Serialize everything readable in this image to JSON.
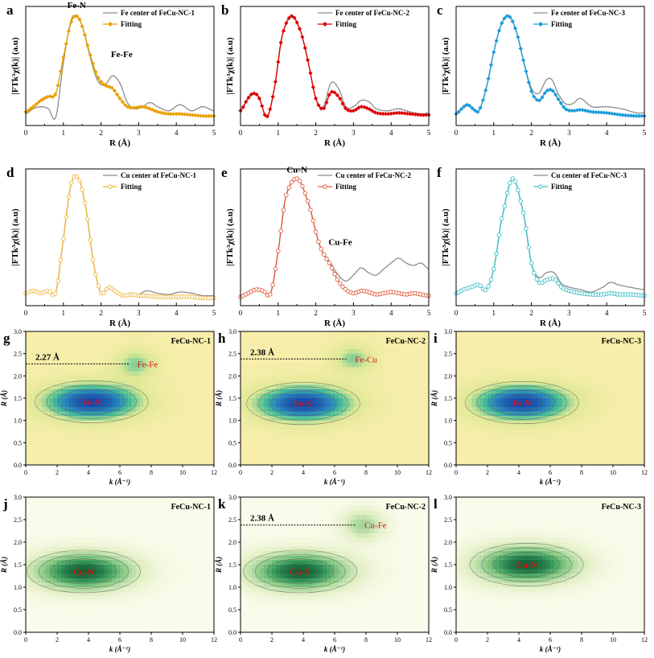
{
  "figure": {
    "rows": [
      {
        "ylabel_html": "|FTk³χ(k)| (a.u)",
        "xlabel": "R (Å)"
      },
      {
        "ylabel_html": "|FTk³χ(k)| (a.u)",
        "xlabel": "R (Å)"
      }
    ]
  },
  "chart_data": [
    {
      "panel": "a",
      "type": "line",
      "title": "",
      "legend": [
        "Fe center of FeCu-NC-1",
        "Fitting"
      ],
      "colors": {
        "data": "#8c8c8c",
        "fit": "#e8a000"
      },
      "fit_marker": "diamond",
      "xlim": [
        0,
        5
      ],
      "xticks": [
        0,
        1,
        2,
        3,
        4,
        5
      ],
      "xlabel": "R (Å)",
      "ylabel": "|FTk³χ(k)| (a.u)",
      "annotations": [
        {
          "text": "Fe-N",
          "x": 1.35,
          "y": 1.08
        },
        {
          "text": "Fe-Fe",
          "x": 2.55,
          "y": 0.6
        }
      ],
      "series": [
        {
          "name": "Fe center of FeCu-NC-1",
          "x": [
            0,
            0.2,
            0.4,
            0.6,
            0.8,
            1.0,
            1.2,
            1.35,
            1.5,
            1.7,
            1.9,
            2.1,
            2.3,
            2.5,
            2.7,
            2.9,
            3.1,
            3.3,
            3.5,
            3.8,
            4.1,
            4.4,
            4.7,
            5.0
          ],
          "y": [
            0.05,
            0.1,
            0.12,
            0.1,
            0.02,
            0.55,
            0.95,
            1.0,
            0.9,
            0.62,
            0.38,
            0.33,
            0.42,
            0.35,
            0.16,
            0.1,
            0.12,
            0.16,
            0.12,
            0.08,
            0.14,
            0.08,
            0.12,
            0.08
          ]
        },
        {
          "name": "Fitting",
          "x": [
            0,
            0.2,
            0.4,
            0.6,
            0.8,
            1.0,
            1.2,
            1.35,
            1.5,
            1.7,
            1.9,
            2.1,
            2.3,
            2.5,
            2.7,
            2.9,
            3.1,
            3.3,
            3.5,
            3.8,
            4.1,
            4.4,
            4.7,
            5.0
          ],
          "y": [
            0.07,
            0.12,
            0.18,
            0.22,
            0.25,
            0.6,
            0.93,
            1.0,
            0.9,
            0.64,
            0.42,
            0.33,
            0.3,
            0.2,
            0.12,
            0.11,
            0.12,
            0.1,
            0.07,
            0.05,
            0.05,
            0.04,
            0.03,
            0.03
          ]
        }
      ]
    },
    {
      "panel": "b",
      "type": "line",
      "title": "",
      "legend": [
        "Fe center of FeCu-NC-2",
        "Fitting"
      ],
      "colors": {
        "data": "#8c8c8c",
        "fit": "#dd0000"
      },
      "fit_marker": "diamond",
      "xlim": [
        0,
        5
      ],
      "xticks": [
        0,
        1,
        2,
        3,
        4,
        5
      ],
      "xlabel": "R (Å)",
      "ylabel": "|FTk³χ(k)| (a.u)",
      "annotations": [],
      "series": [
        {
          "name": "Fe center of FeCu-NC-2",
          "x": [
            0,
            0.2,
            0.35,
            0.5,
            0.7,
            0.9,
            1.1,
            1.35,
            1.6,
            1.8,
            2.0,
            2.2,
            2.4,
            2.6,
            2.8,
            3.0,
            3.2,
            3.4,
            3.6,
            3.9,
            4.2,
            4.5,
            4.8,
            5.0
          ],
          "y": [
            0.08,
            0.2,
            0.25,
            0.2,
            0.02,
            0.3,
            0.8,
            1.0,
            0.85,
            0.55,
            0.2,
            0.12,
            0.35,
            0.3,
            0.12,
            0.12,
            0.18,
            0.17,
            0.1,
            0.08,
            0.1,
            0.07,
            0.05,
            0.06
          ]
        },
        {
          "name": "Fitting",
          "x": [
            0,
            0.2,
            0.35,
            0.5,
            0.7,
            0.9,
            1.1,
            1.35,
            1.6,
            1.8,
            2.0,
            2.2,
            2.4,
            2.6,
            2.8,
            3.0,
            3.2,
            3.4,
            3.6,
            3.9,
            4.2,
            4.5,
            4.8,
            5.0
          ],
          "y": [
            0.08,
            0.2,
            0.25,
            0.2,
            0.02,
            0.3,
            0.8,
            1.0,
            0.85,
            0.55,
            0.2,
            0.1,
            0.26,
            0.22,
            0.1,
            0.08,
            0.12,
            0.1,
            0.06,
            0.05,
            0.06,
            0.05,
            0.04,
            0.04
          ]
        }
      ]
    },
    {
      "panel": "c",
      "type": "line",
      "title": "",
      "legend": [
        "Fe center of FeCu-NC-3",
        "Fitting"
      ],
      "colors": {
        "data": "#8c8c8c",
        "fit": "#1a9cd8"
      },
      "fit_marker": "diamond",
      "xlim": [
        0,
        5
      ],
      "xticks": [
        0,
        1,
        2,
        3,
        4,
        5
      ],
      "xlabel": "R (Å)",
      "ylabel": "|FTk³χ(k)| (a.u)",
      "annotations": [],
      "series": [
        {
          "name": "Fe center of FeCu-NC-3",
          "x": [
            0,
            0.15,
            0.3,
            0.45,
            0.6,
            0.8,
            1.0,
            1.2,
            1.4,
            1.6,
            1.8,
            2.0,
            2.2,
            2.4,
            2.55,
            2.7,
            2.9,
            3.1,
            3.3,
            3.6,
            4.0,
            4.4,
            4.8,
            5.0
          ],
          "y": [
            0.05,
            0.1,
            0.14,
            0.1,
            0.08,
            0.3,
            0.65,
            0.92,
            1.0,
            0.85,
            0.55,
            0.3,
            0.25,
            0.38,
            0.38,
            0.25,
            0.15,
            0.15,
            0.2,
            0.12,
            0.12,
            0.1,
            0.06,
            0.06
          ]
        },
        {
          "name": "Fitting",
          "x": [
            0,
            0.15,
            0.3,
            0.45,
            0.6,
            0.8,
            1.0,
            1.2,
            1.4,
            1.6,
            1.8,
            2.0,
            2.2,
            2.4,
            2.55,
            2.7,
            2.9,
            3.1,
            3.3,
            3.6,
            4.0,
            4.4,
            4.8,
            5.0
          ],
          "y": [
            0.05,
            0.1,
            0.14,
            0.1,
            0.08,
            0.3,
            0.65,
            0.92,
            1.0,
            0.85,
            0.55,
            0.27,
            0.18,
            0.27,
            0.28,
            0.2,
            0.1,
            0.08,
            0.09,
            0.07,
            0.06,
            0.04,
            0.03,
            0.03
          ]
        }
      ]
    },
    {
      "panel": "d",
      "type": "line",
      "title": "",
      "legend": [
        "Cu center of FeCu-NC-1",
        "Fitting"
      ],
      "colors": {
        "data": "#8c8c8c",
        "fit": "#f0b840"
      },
      "fit_marker": "circle",
      "xlim": [
        0,
        5
      ],
      "xticks": [
        0,
        1,
        2,
        3,
        4,
        5
      ],
      "xlabel": "R (Å)",
      "ylabel": "|FTk³χ(k)| (a.u)",
      "annotations": [],
      "series": [
        {
          "name": "Cu center of FeCu-NC-1",
          "x": [
            0,
            0.2,
            0.4,
            0.6,
            0.8,
            1.0,
            1.2,
            1.4,
            1.6,
            1.8,
            2.0,
            2.2,
            2.4,
            2.6,
            2.8,
            3.0,
            3.2,
            3.5,
            3.8,
            4.1,
            4.4,
            4.7,
            5.0
          ],
          "y": [
            0.05,
            0.07,
            0.05,
            0.07,
            0.06,
            0.5,
            0.95,
            1.0,
            0.75,
            0.3,
            0.05,
            0.1,
            0.07,
            0.03,
            0.05,
            0.04,
            0.07,
            0.05,
            0.04,
            0.06,
            0.05,
            0.03,
            0.03
          ]
        },
        {
          "name": "Fitting",
          "x": [
            0,
            0.2,
            0.4,
            0.6,
            0.8,
            1.0,
            1.2,
            1.4,
            1.6,
            1.8,
            2.0,
            2.2,
            2.4,
            2.6,
            2.8,
            3.0,
            3.2,
            3.5,
            3.8,
            4.1,
            4.4,
            4.7,
            5.0
          ],
          "y": [
            0.05,
            0.07,
            0.05,
            0.07,
            0.06,
            0.5,
            0.95,
            1.0,
            0.75,
            0.3,
            0.05,
            0.1,
            0.06,
            0.03,
            0.04,
            0.03,
            0.03,
            0.02,
            0.02,
            0.02,
            0.02,
            0.01,
            0.01
          ]
        }
      ]
    },
    {
      "panel": "e",
      "type": "line",
      "title": "",
      "legend": [
        "Cu center of FeCu-NC-2",
        "Fitting"
      ],
      "colors": {
        "data": "#8c8c8c",
        "fit": "#e06040"
      },
      "fit_marker": "circle",
      "xlim": [
        0,
        5
      ],
      "xticks": [
        0,
        1,
        2,
        3,
        4,
        5
      ],
      "xlabel": "R (Å)",
      "ylabel": "|FTk³χ(k)| (a.u)",
      "annotations": [
        {
          "text": "Cu-N",
          "x": 1.5,
          "y": 1.05
        },
        {
          "text": "Cu-Fe",
          "x": 2.65,
          "y": 0.45
        }
      ],
      "series": [
        {
          "name": "Cu center of FeCu-NC-2",
          "x": [
            0,
            0.2,
            0.4,
            0.6,
            0.8,
            1.0,
            1.2,
            1.5,
            1.8,
            2.1,
            2.4,
            2.6,
            2.8,
            3.0,
            3.2,
            3.4,
            3.6,
            3.8,
            4.0,
            4.2,
            4.4,
            4.6,
            4.8,
            5.0
          ],
          "y": [
            0.02,
            0.05,
            0.08,
            0.07,
            0.05,
            0.4,
            0.85,
            1.0,
            0.8,
            0.45,
            0.3,
            0.2,
            0.15,
            0.2,
            0.26,
            0.22,
            0.2,
            0.25,
            0.3,
            0.34,
            0.3,
            0.28,
            0.3,
            0.25
          ]
        },
        {
          "name": "Fitting",
          "x": [
            0,
            0.2,
            0.4,
            0.6,
            0.8,
            1.0,
            1.2,
            1.5,
            1.8,
            2.1,
            2.4,
            2.6,
            2.8,
            3.0,
            3.2,
            3.4,
            3.6,
            3.8,
            4.0,
            4.2,
            4.4,
            4.6,
            4.8,
            5.0
          ],
          "y": [
            0.02,
            0.05,
            0.08,
            0.07,
            0.05,
            0.4,
            0.85,
            1.0,
            0.8,
            0.45,
            0.28,
            0.15,
            0.08,
            0.05,
            0.07,
            0.06,
            0.04,
            0.05,
            0.06,
            0.05,
            0.04,
            0.05,
            0.04,
            0.03
          ]
        }
      ]
    },
    {
      "panel": "f",
      "type": "line",
      "title": "",
      "legend": [
        "Cu center of FeCu-NC-3",
        "Fitting"
      ],
      "colors": {
        "data": "#8c8c8c",
        "fit": "#40c0c8"
      },
      "fit_marker": "circle",
      "xlim": [
        0,
        5
      ],
      "xticks": [
        0,
        1,
        2,
        3,
        4,
        5
      ],
      "xlabel": "R (Å)",
      "ylabel": "|FTk³χ(k)| (a.u)",
      "annotations": [],
      "series": [
        {
          "name": "Cu center of FeCu-NC-3",
          "x": [
            0,
            0.2,
            0.4,
            0.6,
            0.8,
            1.0,
            1.2,
            1.5,
            1.8,
            2.0,
            2.2,
            2.4,
            2.6,
            2.8,
            3.0,
            3.3,
            3.6,
            3.9,
            4.1,
            4.3,
            4.6,
            5.0
          ],
          "y": [
            0.05,
            0.08,
            0.1,
            0.12,
            0.08,
            0.25,
            0.65,
            1.0,
            0.7,
            0.3,
            0.18,
            0.22,
            0.22,
            0.13,
            0.1,
            0.08,
            0.06,
            0.1,
            0.14,
            0.12,
            0.1,
            0.08
          ]
        },
        {
          "name": "Fitting",
          "x": [
            0,
            0.2,
            0.4,
            0.6,
            0.8,
            1.0,
            1.2,
            1.5,
            1.8,
            2.0,
            2.2,
            2.4,
            2.6,
            2.8,
            3.0,
            3.3,
            3.6,
            3.9,
            4.1,
            4.3,
            4.6,
            5.0
          ],
          "y": [
            0.05,
            0.08,
            0.1,
            0.12,
            0.08,
            0.25,
            0.65,
            1.0,
            0.7,
            0.3,
            0.14,
            0.16,
            0.17,
            0.1,
            0.07,
            0.05,
            0.04,
            0.04,
            0.05,
            0.04,
            0.04,
            0.03
          ]
        }
      ]
    },
    {
      "panel": "g",
      "type": "heatmap",
      "title": "FeCu-NC-1",
      "colormap": "yellow-green-blue",
      "xlim": [
        0,
        12
      ],
      "ylim": [
        0,
        3.0
      ],
      "xticks": [
        0,
        2,
        4,
        6,
        8,
        10,
        12
      ],
      "yticks": [
        0,
        0.5,
        1.0,
        1.5,
        2.0,
        2.5,
        3.0
      ],
      "xlabel": "k (Å⁻¹)",
      "ylabel": "R (Å)",
      "peaks": [
        {
          "k": 4.2,
          "R": 1.42,
          "label": "Fe-N"
        }
      ],
      "secondary": [
        {
          "label": "Fe-Fe",
          "k": 7.0,
          "R": 2.27
        }
      ],
      "reference_line": {
        "R": 2.27,
        "label": "2.27 Å"
      }
    },
    {
      "panel": "h",
      "type": "heatmap",
      "title": "FeCu-NC-2",
      "colormap": "yellow-green-blue",
      "xlim": [
        0,
        12
      ],
      "ylim": [
        0,
        3.0
      ],
      "xticks": [
        0,
        2,
        4,
        6,
        8,
        10,
        12
      ],
      "yticks": [
        0,
        0.5,
        1.0,
        1.5,
        2.0,
        2.5,
        3.0
      ],
      "xlabel": "k (Å⁻¹)",
      "ylabel": "R (Å)",
      "peaks": [
        {
          "k": 4.0,
          "R": 1.38,
          "label": "Fe-N"
        }
      ],
      "secondary": [
        {
          "label": "Fe-Cu",
          "k": 7.2,
          "R": 2.38
        }
      ],
      "reference_line": {
        "R": 2.38,
        "label": "2.38 Å"
      }
    },
    {
      "panel": "i",
      "type": "heatmap",
      "title": "FeCu-NC-3",
      "colormap": "yellow-green-blue",
      "xlim": [
        0,
        12
      ],
      "ylim": [
        0,
        3.0
      ],
      "xticks": [
        0,
        2,
        4,
        6,
        8,
        10,
        12
      ],
      "yticks": [
        0,
        0.5,
        1.0,
        1.5,
        2.0,
        2.5,
        3.0
      ],
      "xlabel": "k (Å⁻¹)",
      "ylabel": "R (Å)",
      "peaks": [
        {
          "k": 4.2,
          "R": 1.4,
          "label": "Fe-N"
        }
      ],
      "secondary": [],
      "reference_line": null
    },
    {
      "panel": "j",
      "type": "heatmap",
      "title": "FeCu-NC-1",
      "colormap": "white-green",
      "xlim": [
        0,
        12
      ],
      "ylim": [
        0,
        3.0
      ],
      "xticks": [
        0,
        2,
        4,
        6,
        8,
        10,
        12
      ],
      "yticks": [
        0,
        0.5,
        1.0,
        1.5,
        2.0,
        2.5,
        3.0
      ],
      "xlabel": "k (Å⁻¹)",
      "ylabel": "R (Å)",
      "peaks": [
        {
          "k": 3.7,
          "R": 1.35,
          "label": "Cu-N"
        }
      ],
      "secondary": [],
      "reference_line": null
    },
    {
      "panel": "k",
      "type": "heatmap",
      "title": "FeCu-NC-2",
      "colormap": "white-green",
      "xlim": [
        0,
        12
      ],
      "ylim": [
        0,
        3.0
      ],
      "xticks": [
        0,
        2,
        4,
        6,
        8,
        10,
        12
      ],
      "yticks": [
        0,
        0.5,
        1.0,
        1.5,
        2.0,
        2.5,
        3.0
      ],
      "xlabel": "k (Å⁻¹)",
      "ylabel": "R (Å)",
      "peaks": [
        {
          "k": 3.8,
          "R": 1.35,
          "label": "Cu-N"
        }
      ],
      "secondary": [
        {
          "label": "Cu-Fe",
          "k": 7.8,
          "R": 2.38
        }
      ],
      "reference_line": {
        "R": 2.38,
        "label": "2.38 Å"
      }
    },
    {
      "panel": "l",
      "type": "heatmap",
      "title": "FeCu-NC-3",
      "colormap": "white-green",
      "xlim": [
        0,
        12
      ],
      "ylim": [
        0,
        3.0
      ],
      "xticks": [
        0,
        2,
        4,
        6,
        8,
        10,
        12
      ],
      "yticks": [
        0,
        0.5,
        1.0,
        1.5,
        2.0,
        2.5,
        3.0
      ],
      "xlabel": "k (Å⁻¹)",
      "ylabel": "R (Å)",
      "peaks": [
        {
          "k": 4.5,
          "R": 1.5,
          "label": "Cu-N"
        }
      ],
      "secondary": [],
      "reference_line": null
    }
  ]
}
